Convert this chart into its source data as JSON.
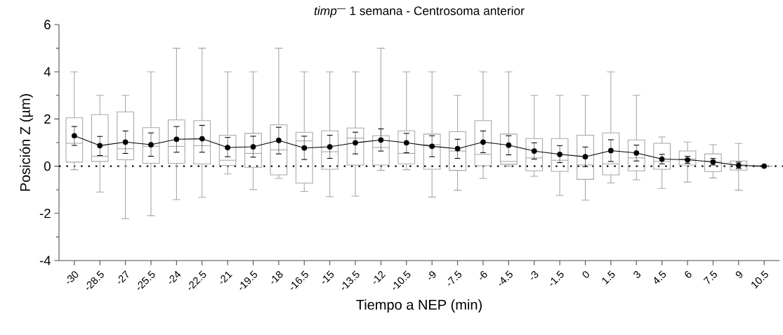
{
  "chart_data": {
    "type": "box",
    "title": "*timp*$^{—}$ 1 semana - Centrosoma anterior",
    "xlabel": "Tiempo a NEP (min)",
    "ylabel": "Posición Z (µm)",
    "categories": [
      "-30",
      "-28.5",
      "-27",
      "-25.5",
      "-24",
      "-22.5",
      "-21",
      "-19.5",
      "-18",
      "-16.5",
      "-15",
      "-13.5",
      "-12",
      "-10.5",
      "-9",
      "-7.5",
      "-6",
      "-4.5",
      "-3",
      "-1.5",
      "0",
      "1.5",
      "3",
      "4.5",
      "6",
      "7.5",
      "9",
      "10.5"
    ],
    "ylim": [
      -4,
      6
    ],
    "yticks": [
      -4,
      -2,
      0,
      2,
      4,
      6
    ],
    "series": [
      {
        "color": "#a6a6a6",
        "boxes": [
          {
            "low": -0.15,
            "q1": 0.17,
            "median": 0.97,
            "q3": 2.05,
            "high": 4
          },
          {
            "low": -1.1,
            "q1": 0.2,
            "median": 0.42,
            "q3": 2.18,
            "high": 3
          },
          {
            "low": -2.23,
            "q1": 0.27,
            "median": 0.74,
            "q3": 2.3,
            "high": 3
          },
          {
            "low": -2.1,
            "q1": 0.12,
            "median": 0.84,
            "q3": 1.63,
            "high": 4
          },
          {
            "low": -1.42,
            "q1": 0.12,
            "median": 0.84,
            "q3": 1.96,
            "high": 5
          },
          {
            "low": -1.32,
            "q1": 0.1,
            "median": 0.87,
            "q3": 1.93,
            "high": 5
          },
          {
            "low": -0.33,
            "q1": 0.03,
            "median": 0.25,
            "q3": 1.31,
            "high": 4
          },
          {
            "low": -0.99,
            "q1": -0.05,
            "median": 0.54,
            "q3": 1.39,
            "high": 4
          },
          {
            "low": -0.52,
            "q1": -0.37,
            "median": 0.69,
            "q3": 1.75,
            "high": 5
          },
          {
            "low": -1.07,
            "q1": -0.72,
            "median": 1.07,
            "q3": 1.44,
            "high": 4
          },
          {
            "low": -1.29,
            "q1": -0.13,
            "median": 0.61,
            "q3": 1.5,
            "high": 4
          },
          {
            "low": -1.27,
            "q1": 0.05,
            "median": 1.19,
            "q3": 1.62,
            "high": 4
          },
          {
            "low": -0.18,
            "q1": 0.05,
            "median": 0.79,
            "q3": 1.29,
            "high": 5
          },
          {
            "low": -0.15,
            "q1": 0.1,
            "median": 0.54,
            "q3": 1.5,
            "high": 4
          },
          {
            "low": -1.31,
            "q1": -0.13,
            "median": 0.91,
            "q3": 1.36,
            "high": 4
          },
          {
            "low": -1.02,
            "q1": -0.18,
            "median": 0.64,
            "q3": 1.46,
            "high": 3
          },
          {
            "low": -0.52,
            "q1": 0.02,
            "median": 0.5,
            "q3": 1.93,
            "high": 4
          },
          {
            "low": 0,
            "q1": 0.08,
            "median": 0.2,
            "q3": 1.36,
            "high": 4
          },
          {
            "low": -0.43,
            "q1": -0.2,
            "median": 0.35,
            "q3": 1.17,
            "high": 3
          },
          {
            "low": -1.24,
            "q1": -0.22,
            "median": 0.25,
            "q3": 1.17,
            "high": 3
          },
          {
            "low": -1.44,
            "q1": -0.56,
            "median": 0.05,
            "q3": 1.31,
            "high": 3
          },
          {
            "low": -0.71,
            "q1": -0.37,
            "median": 0.1,
            "q3": 1.41,
            "high": 4
          },
          {
            "low": -0.58,
            "q1": -0.2,
            "median": 0.35,
            "q3": 1.11,
            "high": 3
          },
          {
            "low": -0.94,
            "q1": -0.13,
            "median": 0.2,
            "q3": 0.97,
            "high": 1.24
          },
          {
            "low": -0.67,
            "q1": 0.05,
            "median": 0.3,
            "q3": 0.64,
            "high": 1.02
          },
          {
            "low": -0.5,
            "q1": -0.23,
            "median": 0.2,
            "q3": 0.52,
            "high": 0.91
          },
          {
            "low": -1.02,
            "q1": -0.17,
            "median": 0.07,
            "q3": 0.22,
            "high": 0.96
          },
          {
            "low": 0,
            "q1": 0,
            "median": 0,
            "q3": 0,
            "high": 0
          }
        ]
      },
      {
        "type": "line",
        "color": "#000000",
        "marker": "circle",
        "values": [
          1.29,
          0.87,
          1.02,
          0.91,
          1.14,
          1.16,
          0.79,
          0.82,
          1.09,
          0.77,
          0.82,
          0.99,
          1.11,
          0.99,
          0.84,
          0.74,
          1.02,
          0.89,
          0.64,
          0.5,
          0.4,
          0.66,
          0.56,
          0.3,
          0.27,
          0.18,
          0.03,
          0
        ],
        "errors": [
          [
            0.88,
            1.68
          ],
          [
            0.45,
            1.26
          ],
          [
            0.54,
            1.49
          ],
          [
            0.42,
            1.41
          ],
          [
            0.59,
            1.68
          ],
          [
            0.59,
            1.73
          ],
          [
            0.4,
            1.22
          ],
          [
            0.38,
            1.27
          ],
          [
            0.52,
            1.65
          ],
          [
            0.28,
            1.27
          ],
          [
            0.33,
            1.31
          ],
          [
            0.52,
            1.44
          ],
          [
            0.64,
            1.58
          ],
          [
            0.57,
            1.39
          ],
          [
            0.4,
            1.29
          ],
          [
            0.33,
            1.14
          ],
          [
            0.57,
            1.49
          ],
          [
            0.48,
            1.29
          ],
          [
            0.3,
            0.99
          ],
          [
            0.15,
            0.87
          ],
          [
            -0.02,
            0.81
          ],
          [
            0.2,
            1.12
          ],
          [
            0.22,
            0.89
          ],
          [
            0.1,
            0.5
          ],
          [
            0.12,
            0.42
          ],
          [
            0.05,
            0.33
          ],
          [
            -0.1,
            0.17
          ],
          null
        ]
      }
    ],
    "ref_lines": [
      {
        "axis": "y",
        "value": 0,
        "color": "#000000",
        "line_style": "dotted"
      }
    ]
  }
}
